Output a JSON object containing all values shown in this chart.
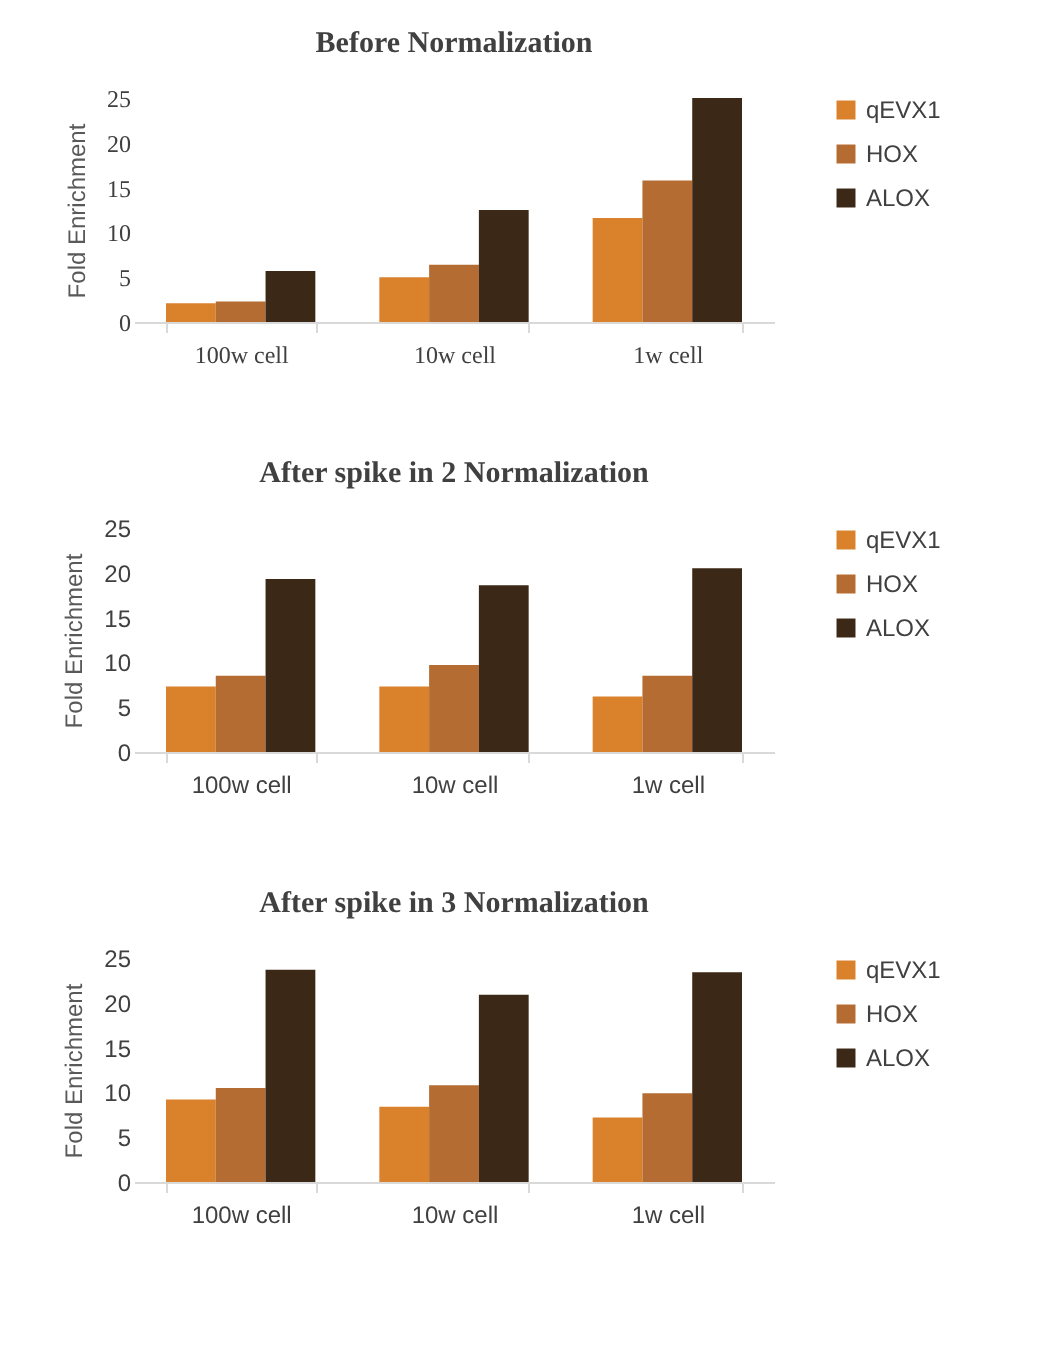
{
  "chart_data": [
    {
      "type": "bar",
      "title": "Before Normalization",
      "ylabel": "Fold Enrichment",
      "categories": [
        "100w cell",
        "10w cell",
        "1w cell"
      ],
      "series": [
        {
          "name": "qEVX1",
          "color": "#d9822b",
          "values": [
            2.1,
            5.0,
            11.6
          ]
        },
        {
          "name": "HOX",
          "color": "#b46c32",
          "values": [
            2.3,
            6.4,
            15.8
          ]
        },
        {
          "name": "ALOX",
          "color": "#3b2816",
          "values": [
            5.7,
            12.5,
            25.0
          ]
        }
      ],
      "ylim": [
        0,
        25
      ],
      "yticks": [
        0,
        5,
        10,
        15,
        20,
        25
      ],
      "grid": false,
      "legend": "right"
    },
    {
      "type": "bar",
      "title": "After spike in 2 Normalization",
      "ylabel": "Fold Enrichment",
      "categories": [
        "100w cell",
        "10w cell",
        "1w cell"
      ],
      "series": [
        {
          "name": "qEVX1",
          "color": "#d9822b",
          "values": [
            7.3,
            7.3,
            6.2
          ]
        },
        {
          "name": "HOX",
          "color": "#b46c32",
          "values": [
            8.5,
            9.7,
            8.5
          ]
        },
        {
          "name": "ALOX",
          "color": "#3b2816",
          "values": [
            19.3,
            18.6,
            20.5
          ]
        }
      ],
      "ylim": [
        0,
        25
      ],
      "yticks": [
        0,
        5,
        10,
        15,
        20,
        25
      ],
      "grid": false,
      "legend": "right"
    },
    {
      "type": "bar",
      "title": "After spike in 3 Normalization",
      "ylabel": "Fold Enrichment",
      "categories": [
        "100w cell",
        "10w cell",
        "1w cell"
      ],
      "series": [
        {
          "name": "qEVX1",
          "color": "#d9822b",
          "values": [
            9.2,
            8.4,
            7.2
          ]
        },
        {
          "name": "HOX",
          "color": "#b46c32",
          "values": [
            10.5,
            10.8,
            9.9
          ]
        },
        {
          "name": "ALOX",
          "color": "#3b2816",
          "values": [
            23.7,
            20.9,
            23.4
          ]
        }
      ],
      "ylim": [
        0,
        25
      ],
      "yticks": [
        0,
        5,
        10,
        15,
        20,
        25
      ],
      "grid": false,
      "legend": "right"
    }
  ]
}
